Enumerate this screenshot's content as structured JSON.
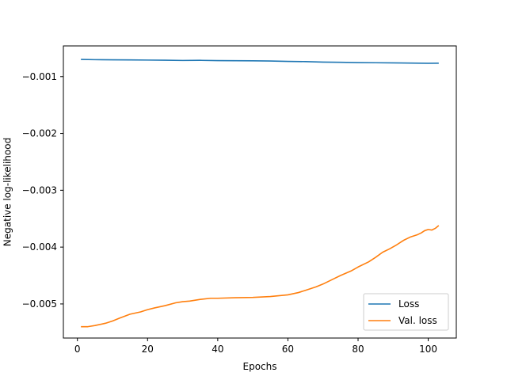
{
  "chart_data": {
    "type": "line",
    "title": "",
    "xlabel": "Epochs",
    "ylabel": "Negative log-likelihood",
    "xlim": [
      -4,
      108
    ],
    "ylim": [
      -0.0056,
      -0.00046
    ],
    "xticks": [
      0,
      20,
      40,
      60,
      80,
      100
    ],
    "xtick_labels": [
      "0",
      "20",
      "40",
      "60",
      "80",
      "100"
    ],
    "yticks": [
      -0.001,
      -0.002,
      -0.003,
      -0.004,
      -0.005
    ],
    "ytick_labels": [
      "−0.001",
      "−0.002",
      "−0.003",
      "−0.004",
      "−0.005"
    ],
    "grid": false,
    "legend_position": "lower-right",
    "series": [
      {
        "name": "Loss",
        "color": "#1f77b4",
        "points": [
          [
            1,
            -0.000698
          ],
          [
            5,
            -0.000702
          ],
          [
            10,
            -0.000704
          ],
          [
            15,
            -0.000706
          ],
          [
            20,
            -0.000709
          ],
          [
            25,
            -0.000712
          ],
          [
            30,
            -0.000716
          ],
          [
            35,
            -0.000714
          ],
          [
            40,
            -0.000718
          ],
          [
            45,
            -0.00072
          ],
          [
            50,
            -0.000722
          ],
          [
            55,
            -0.000726
          ],
          [
            60,
            -0.000732
          ],
          [
            65,
            -0.000736
          ],
          [
            70,
            -0.000744
          ],
          [
            75,
            -0.000748
          ],
          [
            80,
            -0.000754
          ],
          [
            85,
            -0.000756
          ],
          [
            90,
            -0.000759
          ],
          [
            95,
            -0.000762
          ],
          [
            100,
            -0.000766
          ],
          [
            103,
            -0.000764
          ]
        ]
      },
      {
        "name": "Val. loss",
        "color": "#ff7f0e",
        "points": [
          [
            1,
            -0.0054
          ],
          [
            3,
            -0.0054
          ],
          [
            5,
            -0.00538
          ],
          [
            8,
            -0.00534
          ],
          [
            10,
            -0.0053
          ],
          [
            12,
            -0.00525
          ],
          [
            15,
            -0.00518
          ],
          [
            18,
            -0.00514
          ],
          [
            20,
            -0.0051
          ],
          [
            22,
            -0.00507
          ],
          [
            25,
            -0.00503
          ],
          [
            28,
            -0.00498
          ],
          [
            30,
            -0.00496
          ],
          [
            32,
            -0.00495
          ],
          [
            35,
            -0.00492
          ],
          [
            38,
            -0.0049
          ],
          [
            40,
            -0.0049
          ],
          [
            45,
            -0.00489
          ],
          [
            50,
            -0.004885
          ],
          [
            55,
            -0.00487
          ],
          [
            60,
            -0.00484
          ],
          [
            63,
            -0.0048
          ],
          [
            65,
            -0.00476
          ],
          [
            68,
            -0.0047
          ],
          [
            70,
            -0.00465
          ],
          [
            73,
            -0.00456
          ],
          [
            75,
            -0.0045
          ],
          [
            78,
            -0.00442
          ],
          [
            80,
            -0.00435
          ],
          [
            83,
            -0.00426
          ],
          [
            85,
            -0.00418
          ],
          [
            87,
            -0.00409
          ],
          [
            89,
            -0.00403
          ],
          [
            91,
            -0.00396
          ],
          [
            93,
            -0.00388
          ],
          [
            95,
            -0.00382
          ],
          [
            97,
            -0.00378
          ],
          [
            98,
            -0.00375
          ],
          [
            99,
            -0.00371
          ],
          [
            100,
            -0.00369
          ],
          [
            101,
            -0.0037
          ],
          [
            102,
            -0.00367
          ],
          [
            103,
            -0.00362
          ]
        ]
      }
    ]
  }
}
